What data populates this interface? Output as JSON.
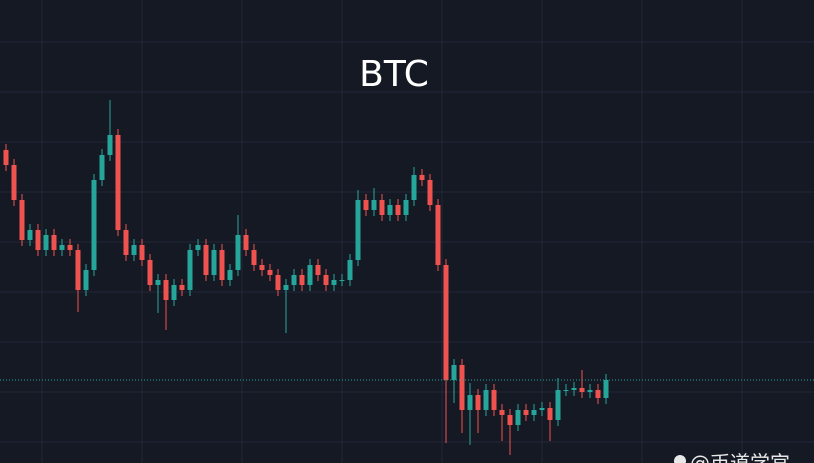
{
  "chart_data": {
    "type": "candlestick",
    "title": "BTC",
    "open": [
      313,
      298,
      263,
      223,
      233,
      213,
      228,
      213,
      218,
      213,
      173,
      193,
      283,
      308,
      328,
      233,
      208,
      218,
      203,
      178,
      183,
      163,
      178,
      173,
      213,
      218,
      188,
      213,
      183,
      193,
      228,
      213,
      198,
      193,
      188,
      173,
      178,
      188,
      178,
      198,
      188,
      178,
      183,
      183,
      203,
      263,
      253,
      263,
      248,
      258,
      248,
      263,
      288,
      283,
      258,
      198,
      83,
      98,
      53,
      68,
      53,
      73,
      53,
      48,
      38,
      53,
      48,
      53,
      55,
      43,
      73,
      73,
      75,
      71,
      73,
      65
    ],
    "high": [
      319,
      304,
      269,
      239,
      239,
      234,
      234,
      224,
      224,
      219,
      199,
      289,
      314,
      363,
      334,
      239,
      224,
      224,
      209,
      189,
      189,
      184,
      184,
      219,
      224,
      224,
      219,
      219,
      199,
      248,
      234,
      219,
      204,
      199,
      194,
      184,
      194,
      194,
      204,
      204,
      194,
      189,
      189,
      209,
      273,
      269,
      275,
      269,
      264,
      264,
      269,
      296,
      294,
      289,
      264,
      204,
      104,
      104,
      80,
      74,
      79,
      79,
      59,
      54,
      59,
      59,
      59,
      61,
      61,
      85,
      79,
      81,
      93,
      79,
      79,
      89
    ],
    "low": [
      292,
      257,
      217,
      217,
      207,
      207,
      207,
      207,
      207,
      151,
      167,
      187,
      277,
      302,
      227,
      202,
      202,
      197,
      172,
      150,
      133,
      157,
      167,
      167,
      207,
      182,
      182,
      177,
      177,
      187,
      207,
      192,
      187,
      182,
      167,
      130,
      172,
      172,
      172,
      182,
      172,
      172,
      177,
      177,
      197,
      247,
      247,
      242,
      242,
      242,
      242,
      257,
      277,
      252,
      192,
      20,
      60,
      30,
      18,
      30,
      47,
      47,
      22,
      8,
      32,
      42,
      42,
      47,
      22,
      37,
      67,
      67,
      65,
      65,
      59,
      59
    ],
    "close": [
      298,
      263,
      223,
      233,
      213,
      228,
      213,
      218,
      213,
      173,
      193,
      283,
      308,
      328,
      233,
      208,
      218,
      203,
      178,
      183,
      163,
      178,
      173,
      213,
      218,
      188,
      213,
      183,
      193,
      228,
      213,
      198,
      193,
      188,
      173,
      178,
      188,
      178,
      198,
      188,
      178,
      183,
      183,
      203,
      263,
      253,
      263,
      248,
      258,
      248,
      263,
      288,
      283,
      258,
      198,
      83,
      98,
      53,
      68,
      53,
      73,
      53,
      48,
      38,
      53,
      48,
      53,
      55,
      43,
      73,
      73,
      75,
      71,
      73,
      65,
      83
    ],
    "up_color": "#26a69a",
    "down_color": "#ef5350",
    "ylim": [
      0,
      463
    ]
  },
  "watermark": "@币道学宫"
}
